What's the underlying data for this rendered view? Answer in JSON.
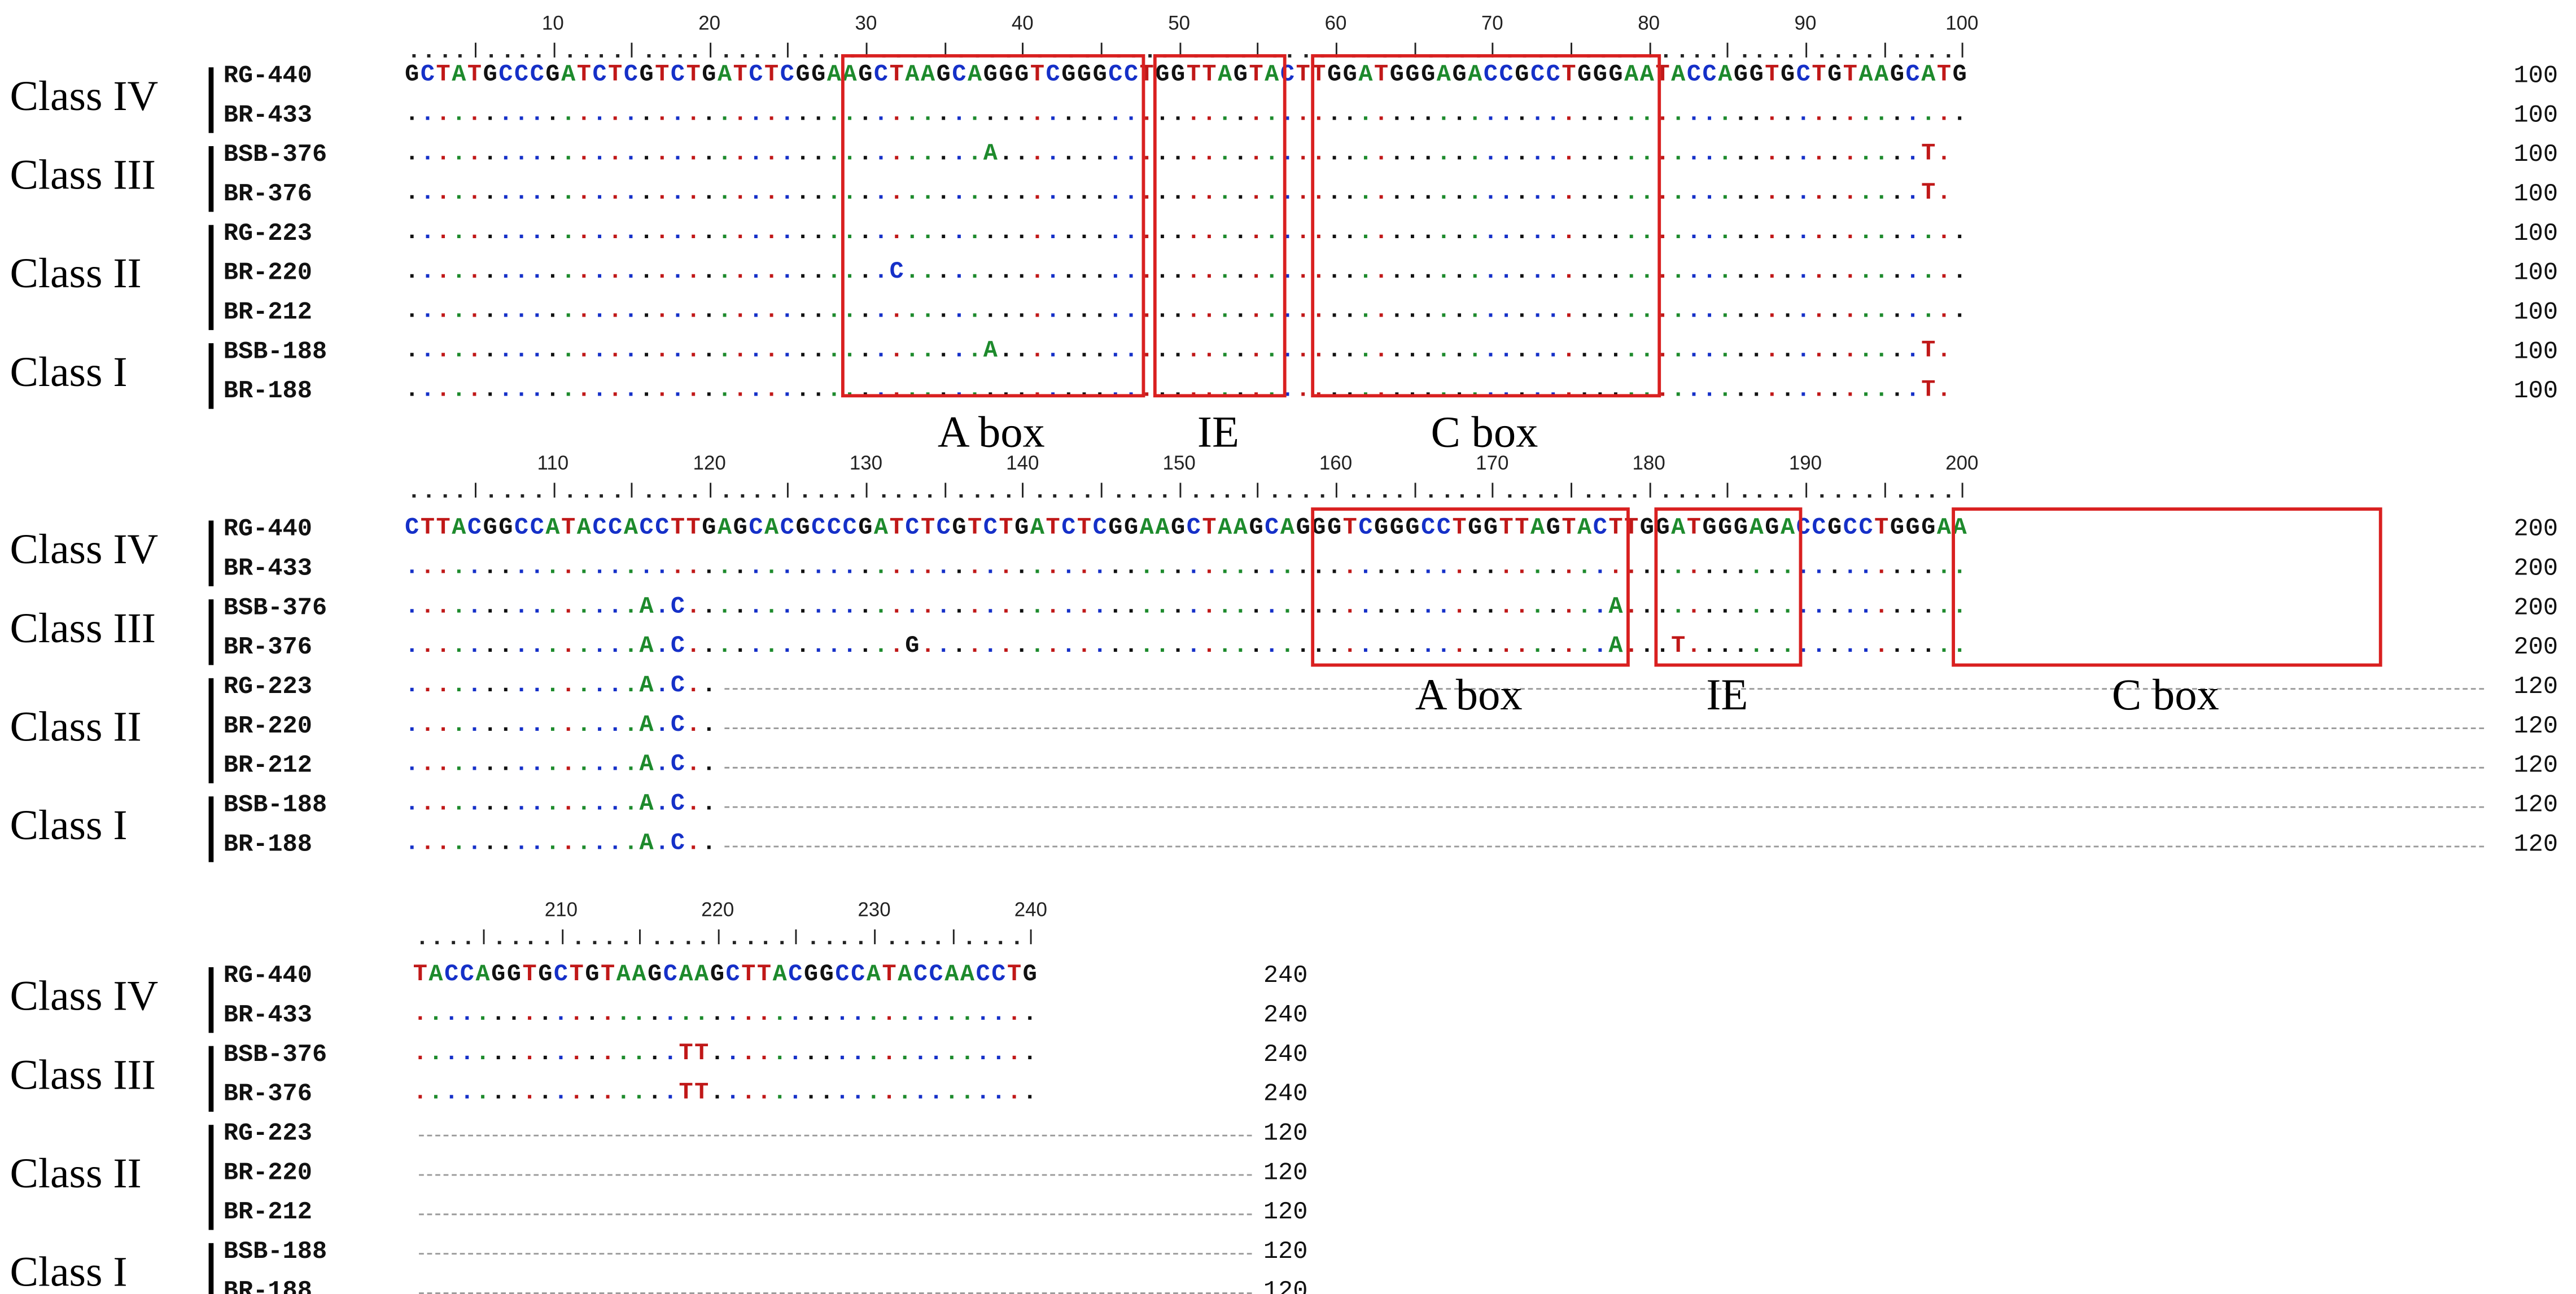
{
  "colors": {
    "A": "#1d8a2c",
    "C": "#1530c8",
    "G": "#111111",
    "T": "#c01818",
    "box": "#d92020",
    "gap": "#9a9a9a"
  },
  "blocks": [
    {
      "ruler_ticks": [
        "10",
        "20",
        "30",
        "40",
        "50",
        "60",
        "70",
        "80",
        "90",
        "100"
      ],
      "groups": [
        {
          "label": "Class IV",
          "samples": [
            "RG-440",
            "BR-433"
          ]
        },
        {
          "label": "Class III",
          "samples": [
            "BSB-376",
            "BR-376"
          ]
        },
        {
          "label": "Class II",
          "samples": [
            "RG-223",
            "BR-220",
            "BR-212"
          ]
        },
        {
          "label": "Class I",
          "samples": [
            "BSB-188",
            "BR-188"
          ]
        }
      ],
      "sequences": [
        "GCTATGCCCGATCTCGTCTGATCTCGGAAGCTAAGCAGGGTCGGGCCTGGTTAGTACTTGGATGGGAGACCGCCTGGGAATACCAGGTGCTGTAAGCATG",
        "....................................................................................................",
        ".....................................A...........................................................T.",
        ".................................................................................................T.",
        "....................................................................................................",
        "...............................C....................................................................",
        "....................................................................................................",
        ".....................................A...........................................................T.",
        ".................................................................................................T."
      ],
      "lengths": [
        "100",
        "100",
        "100",
        "100",
        "100",
        "100",
        "100",
        "100",
        "100"
      ],
      "boxes": [
        {
          "label": "A box",
          "from": 28,
          "to": 47
        },
        {
          "label": "IE",
          "from": 48,
          "to": 56
        },
        {
          "label": "C box",
          "from": 58,
          "to": 80
        }
      ]
    },
    {
      "ruler_ticks": [
        "110",
        "120",
        "130",
        "140",
        "150",
        "160",
        "170",
        "180",
        "190",
        "200"
      ],
      "groups": [
        {
          "label": "Class IV",
          "samples": [
            "RG-440",
            "BR-433"
          ]
        },
        {
          "label": "Class III",
          "samples": [
            "BSB-376",
            "BR-376"
          ]
        },
        {
          "label": "Class II",
          "samples": [
            "RG-223",
            "BR-220",
            "BR-212"
          ]
        },
        {
          "label": "Class I",
          "samples": [
            "BSB-188",
            "BR-188"
          ]
        }
      ],
      "sequences": [
        "CTTACGGCCATACCACCTTGAGCACGCCCGATCTCGTCTGATCTCGGAAGCTAAGCAGGGTCGGGCCTGGTTAGTACTTGGATGGGAGACCGCCTGGGAA",
        "....................................................................................................",
        "...............A.C...........................................................A......................",
        "...............A.C..............G............................................A...T..................",
        "...............A.C..",
        "...............A.C..",
        "...............A.C..",
        "...............A.C..",
        "...............A.C.."
      ],
      "lengths": [
        "200",
        "200",
        "200",
        "200",
        "120",
        "120",
        "120",
        "120",
        "120"
      ],
      "boxes": [
        {
          "label": "A box",
          "from": 58,
          "to": 78
        },
        {
          "label": "IE",
          "from": 80,
          "to": 89
        },
        {
          "label": "C box",
          "from": 99,
          "to": 126
        }
      ]
    },
    {
      "ruler_ticks": [
        "210",
        "220",
        "230",
        "240"
      ],
      "groups": [
        {
          "label": "Class IV",
          "samples": [
            "RG-440",
            "BR-433"
          ]
        },
        {
          "label": "Class III",
          "samples": [
            "BSB-376",
            "BR-376"
          ]
        },
        {
          "label": "Class II",
          "samples": [
            "RG-223",
            "BR-220",
            "BR-212"
          ]
        },
        {
          "label": "Class I",
          "samples": [
            "BSB-188",
            "BR-188"
          ]
        }
      ],
      "sequences": [
        "TACCAGGTGCTGTAAGCAAGCTTACGGCCATACCAACCTG",
        "........................................",
        ".................TT.....................",
        ".................TT.....................",
        "",
        "",
        "",
        "",
        ""
      ],
      "lengths": [
        "240",
        "240",
        "240",
        "240",
        "120",
        "120",
        "120",
        "120",
        "120"
      ],
      "boxes": []
    }
  ]
}
